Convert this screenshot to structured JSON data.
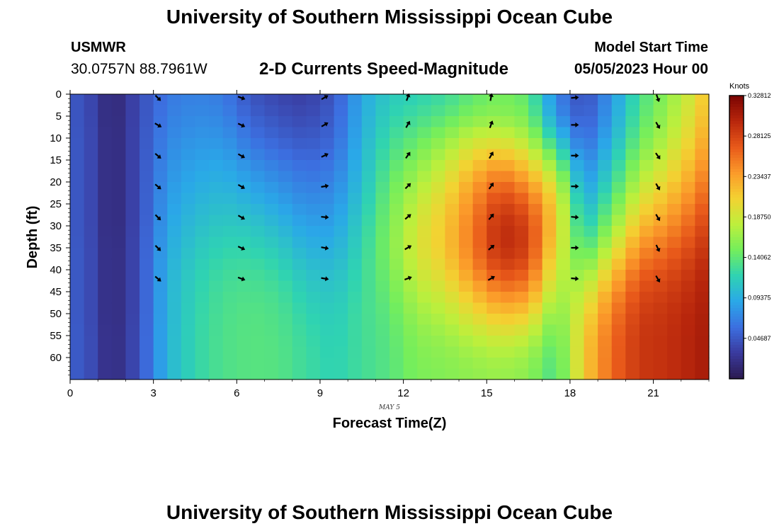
{
  "page": {
    "title": "University of Southern Mississippi Ocean Cube",
    "station": "USMWR",
    "coordinates": "30.0757N  88.7961W",
    "subtitle": "2-D Currents Speed-Magnitude",
    "model_start_label": "Model Start Time",
    "model_start_value": "05/05/2023 Hour 00",
    "bottom_title": "University of Southern Mississippi Ocean Cube"
  },
  "colors": {
    "colormap": [
      "#2b1a4f",
      "#3a3a9e",
      "#3c6fe0",
      "#2aa8e8",
      "#2fd3b2",
      "#74ee5c",
      "#bdef3c",
      "#f3d232",
      "#fb9a2a",
      "#e8591a",
      "#b8260c",
      "#7a0403"
    ],
    "arrow": "#000000",
    "axis": "#000000"
  },
  "chart_data": {
    "type": "heatmap",
    "title": "2-D Currents Speed-Magnitude",
    "xlabel": "Forecast Time(Z)",
    "ylabel": "Depth (ft)",
    "x_sublabel": "MAY 5",
    "xlim": [
      0,
      23
    ],
    "ylim": [
      65,
      0
    ],
    "xticks": [
      "0",
      "3",
      "6",
      "9",
      "12",
      "15",
      "18",
      "21"
    ],
    "yticks": [
      "0",
      "5",
      "10",
      "15",
      "20",
      "25",
      "30",
      "35",
      "40",
      "45",
      "50",
      "55",
      "60"
    ],
    "colorbar": {
      "label": "Knots",
      "min": 0.0,
      "max": 0.32812,
      "ticks": [
        "0.32812",
        "0.28125",
        "0.23437",
        "0.18750",
        "0.14062",
        "0.09375",
        "0.04687"
      ]
    },
    "hours": [
      0,
      1,
      2,
      3,
      4,
      5,
      6,
      7,
      8,
      9,
      10,
      11,
      12,
      13,
      14,
      15,
      16,
      17,
      18,
      19,
      20,
      21,
      22,
      23
    ],
    "depths": [
      0,
      5,
      10,
      15,
      20,
      25,
      30,
      35,
      40,
      45,
      50,
      55,
      60,
      65
    ],
    "speed_knots": [
      [
        0.045,
        0.045,
        0.046,
        0.046,
        0.046,
        0.046,
        0.046,
        0.047,
        0.047,
        0.047,
        0.047,
        0.048,
        0.048,
        0.048
      ],
      [
        0.012,
        0.012,
        0.013,
        0.013,
        0.013,
        0.013,
        0.013,
        0.014,
        0.014,
        0.014,
        0.014,
        0.015,
        0.015,
        0.015
      ],
      [
        0.04,
        0.04,
        0.041,
        0.041,
        0.041,
        0.041,
        0.041,
        0.042,
        0.042,
        0.042,
        0.042,
        0.043,
        0.043,
        0.043
      ],
      [
        0.065,
        0.068,
        0.072,
        0.076,
        0.08,
        0.084,
        0.088,
        0.092,
        0.095,
        0.097,
        0.097,
        0.098,
        0.098,
        0.098
      ],
      [
        0.07,
        0.074,
        0.08,
        0.086,
        0.092,
        0.098,
        0.104,
        0.11,
        0.115,
        0.118,
        0.12,
        0.121,
        0.121,
        0.121
      ],
      [
        0.066,
        0.072,
        0.08,
        0.088,
        0.096,
        0.104,
        0.112,
        0.12,
        0.126,
        0.13,
        0.132,
        0.133,
        0.133,
        0.133
      ],
      [
        0.045,
        0.052,
        0.062,
        0.074,
        0.086,
        0.098,
        0.11,
        0.12,
        0.128,
        0.133,
        0.136,
        0.137,
        0.137,
        0.137
      ],
      [
        0.036,
        0.043,
        0.052,
        0.064,
        0.076,
        0.088,
        0.1,
        0.112,
        0.122,
        0.129,
        0.133,
        0.135,
        0.136,
        0.136
      ],
      [
        0.032,
        0.038,
        0.046,
        0.056,
        0.066,
        0.076,
        0.086,
        0.096,
        0.106,
        0.114,
        0.12,
        0.124,
        0.126,
        0.126
      ],
      [
        0.046,
        0.05,
        0.055,
        0.062,
        0.07,
        0.078,
        0.086,
        0.094,
        0.102,
        0.108,
        0.113,
        0.116,
        0.118,
        0.118
      ],
      [
        0.09,
        0.092,
        0.096,
        0.1,
        0.104,
        0.11,
        0.116,
        0.12,
        0.124,
        0.126,
        0.128,
        0.128,
        0.128,
        0.128
      ],
      [
        0.112,
        0.118,
        0.126,
        0.134,
        0.142,
        0.148,
        0.152,
        0.154,
        0.15,
        0.145,
        0.14,
        0.138,
        0.137,
        0.137
      ],
      [
        0.118,
        0.128,
        0.142,
        0.156,
        0.17,
        0.182,
        0.19,
        0.192,
        0.186,
        0.176,
        0.166,
        0.158,
        0.154,
        0.152
      ],
      [
        0.125,
        0.138,
        0.16,
        0.18,
        0.196,
        0.208,
        0.214,
        0.214,
        0.206,
        0.192,
        0.178,
        0.166,
        0.158,
        0.155
      ],
      [
        0.14,
        0.155,
        0.185,
        0.21,
        0.232,
        0.246,
        0.254,
        0.254,
        0.244,
        0.222,
        0.2,
        0.18,
        0.166,
        0.16
      ],
      [
        0.15,
        0.16,
        0.19,
        0.228,
        0.262,
        0.284,
        0.296,
        0.296,
        0.28,
        0.252,
        0.22,
        0.192,
        0.172,
        0.164
      ],
      [
        0.14,
        0.15,
        0.172,
        0.205,
        0.238,
        0.266,
        0.282,
        0.284,
        0.27,
        0.244,
        0.212,
        0.184,
        0.165,
        0.158
      ],
      [
        0.07,
        0.08,
        0.11,
        0.15,
        0.185,
        0.205,
        0.208,
        0.2,
        0.186,
        0.17,
        0.154,
        0.142,
        0.134,
        0.13
      ],
      [
        0.04,
        0.045,
        0.055,
        0.068,
        0.08,
        0.095,
        0.11,
        0.13,
        0.155,
        0.18,
        0.198,
        0.208,
        0.212,
        0.212
      ],
      [
        0.08,
        0.085,
        0.095,
        0.108,
        0.122,
        0.14,
        0.16,
        0.185,
        0.212,
        0.236,
        0.252,
        0.26,
        0.262,
        0.262
      ],
      [
        0.13,
        0.135,
        0.145,
        0.16,
        0.178,
        0.198,
        0.22,
        0.242,
        0.262,
        0.276,
        0.284,
        0.288,
        0.288,
        0.288
      ],
      [
        0.16,
        0.166,
        0.176,
        0.19,
        0.206,
        0.224,
        0.242,
        0.26,
        0.274,
        0.284,
        0.29,
        0.292,
        0.292,
        0.292
      ],
      [
        0.196,
        0.202,
        0.212,
        0.224,
        0.238,
        0.254,
        0.268,
        0.28,
        0.29,
        0.296,
        0.3,
        0.302,
        0.302,
        0.302
      ],
      [
        0.25,
        0.256,
        0.264,
        0.274,
        0.284,
        0.294,
        0.302,
        0.308,
        0.312,
        0.314,
        0.314,
        0.314,
        0.314,
        0.314
      ]
    ],
    "arrow_hours": [
      3,
      6,
      9,
      12,
      15,
      18,
      21
    ],
    "arrow_depths": [
      0,
      7,
      14,
      21,
      28,
      35,
      42
    ],
    "arrow_direction_deg": [
      [
        -45,
        -30,
        -40,
        -40,
        -45,
        -45,
        -40
      ],
      [
        -20,
        -25,
        -30,
        -30,
        -30,
        -25,
        -20
      ],
      [
        30,
        30,
        25,
        10,
        -5,
        -10,
        -10
      ],
      [
        70,
        60,
        55,
        45,
        40,
        30,
        20
      ],
      [
        80,
        70,
        60,
        55,
        50,
        40,
        30
      ],
      [
        5,
        0,
        0,
        0,
        -5,
        0,
        -5
      ],
      [
        -70,
        -60,
        -55,
        -60,
        -60,
        -65,
        -60
      ]
    ]
  }
}
